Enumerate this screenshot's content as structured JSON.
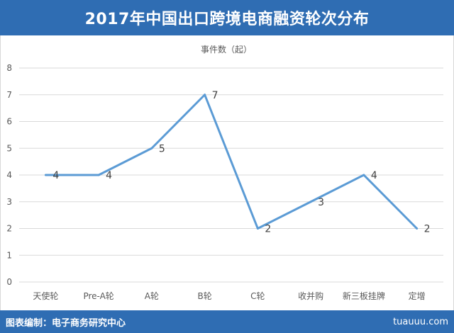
{
  "header": {
    "title": "2017年中国出口跨境电商融资轮次分布"
  },
  "footer": {
    "credit": "图表编制：电子商务研究中心",
    "watermark": "tuauuu.com"
  },
  "colors": {
    "header_bg": "#2f6db3",
    "series_line": "#5b9bd5",
    "grid": "#d9d9d9",
    "text": "#595959"
  },
  "chart_data": {
    "type": "line",
    "title": "",
    "ylabel": "事件数（起）",
    "xlabel": "",
    "categories": [
      "天使轮",
      "Pre-A轮",
      "A轮",
      "B轮",
      "C轮",
      "收并购",
      "新三板挂牌",
      "定增"
    ],
    "y_ticks": [
      "0",
      "1",
      "2",
      "3",
      "4",
      "5",
      "6",
      "7",
      "8"
    ],
    "series": [
      {
        "values": [
          4,
          4,
          5,
          7,
          2,
          3,
          4,
          2
        ]
      }
    ],
    "data_labels": [
      "4",
      "4",
      "5",
      "7",
      "2",
      "3",
      "4",
      "2"
    ],
    "ylim": [
      0,
      8
    ],
    "grid": true,
    "legend": "none"
  }
}
